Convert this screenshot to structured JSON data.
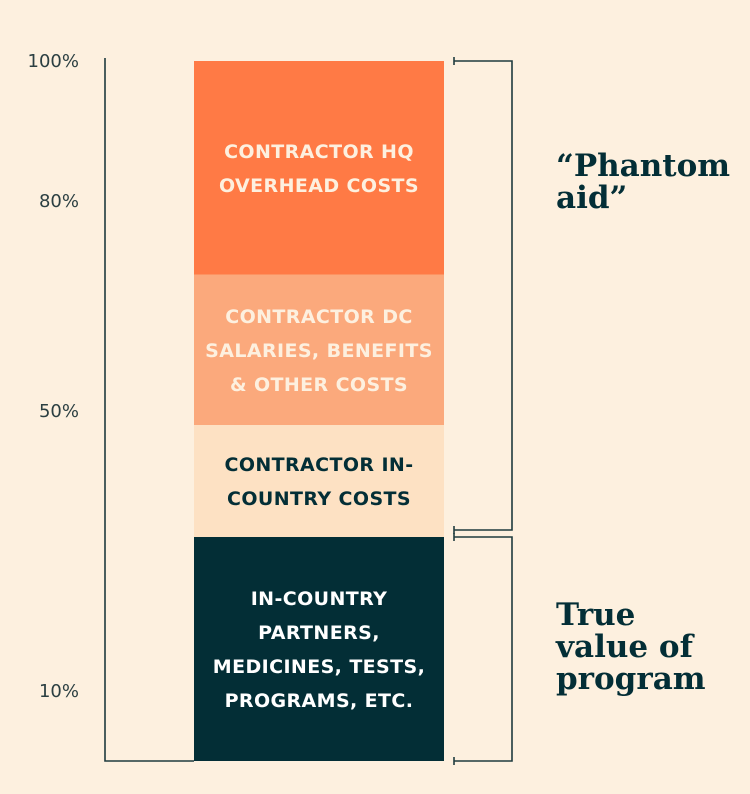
{
  "chart_data": {
    "type": "bar",
    "orientation": "stacked-vertical",
    "y_ticks": [
      {
        "value": 100,
        "label": "100%"
      },
      {
        "value": 80,
        "label": "80%"
      },
      {
        "value": 50,
        "label": "50%"
      },
      {
        "value": 10,
        "label": "10%"
      }
    ],
    "segments": [
      {
        "name": "in-country-partners",
        "from": 0,
        "to": 32,
        "color": "#032e36",
        "text_color": "#ffffff",
        "lines": [
          "IN-COUNTRY",
          "PARTNERS,",
          "MEDICINES, TESTS,",
          "PROGRAMS, ETC."
        ]
      },
      {
        "name": "contractor-in-country",
        "from": 32,
        "to": 48,
        "color": "#fde1c3",
        "text_color": "#032e36",
        "lines": [
          "CONTRACTOR IN-",
          "COUNTRY COSTS"
        ]
      },
      {
        "name": "contractor-dc",
        "from": 48,
        "to": 69.5,
        "color": "#fba97c",
        "text_color": "#fdf0df",
        "lines": [
          "CONTRACTOR DC",
          "SALARIES, BENEFITS",
          "& OTHER COSTS"
        ]
      },
      {
        "name": "contractor-hq",
        "from": 69.5,
        "to": 100,
        "color": "#ff7a45",
        "text_color": "#fdf0df",
        "lines": [
          "CONTRACTOR HQ",
          "OVERHEAD COSTS"
        ]
      }
    ],
    "brackets": [
      {
        "name": "phantom-aid",
        "from": 33,
        "to": 100,
        "lines": [
          "“Phantom",
          "aid”"
        ]
      },
      {
        "name": "true-value",
        "from": 0,
        "to": 32,
        "lines": [
          "True",
          "value of",
          "program"
        ]
      }
    ],
    "colors": {
      "background": "#fdf0df",
      "line": "#1f3b3f",
      "dark_text": "#032e36",
      "tick_text": "#2b3f42"
    }
  }
}
